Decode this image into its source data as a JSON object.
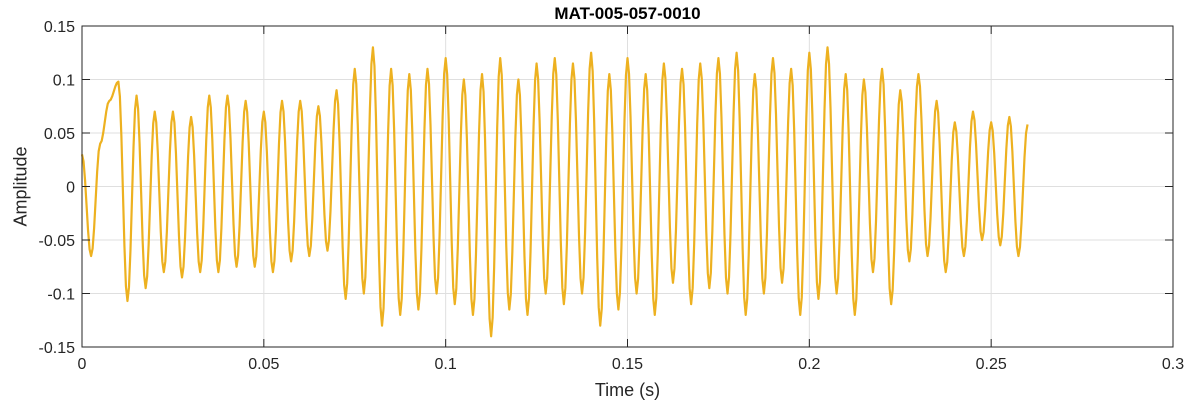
{
  "chart_data": {
    "type": "line",
    "title": "MAT-005-057-0010",
    "xlabel": "Time (s)",
    "ylabel": "Amplitude",
    "xlim": [
      0,
      0.3
    ],
    "ylim": [
      -0.15,
      0.15
    ],
    "x_ticks": [
      0,
      0.05,
      0.1,
      0.15,
      0.2,
      0.25,
      0.3
    ],
    "x_tick_labels": [
      "0",
      "0.05",
      "0.1",
      "0.15",
      "0.2",
      "0.25",
      "0.3"
    ],
    "y_ticks": [
      -0.15,
      -0.1,
      -0.05,
      0,
      0.05,
      0.1,
      0.15
    ],
    "y_tick_labels": [
      "-0.15",
      "-0.1",
      "-0.05",
      "0",
      "0.05",
      "0.1",
      "0.15"
    ],
    "grid": true,
    "legend": "none",
    "series": [
      {
        "color": "#EDB120",
        "x": [
          0.0,
          0.0025,
          0.005,
          0.0075,
          0.01,
          0.0125,
          0.015,
          0.0175,
          0.02,
          0.0225,
          0.025,
          0.0275,
          0.03,
          0.0325,
          0.035,
          0.0375,
          0.04,
          0.0425,
          0.045,
          0.0475,
          0.05,
          0.0525,
          0.055,
          0.0575,
          0.06,
          0.0625,
          0.065,
          0.0675,
          0.07,
          0.0725,
          0.075,
          0.0775,
          0.08,
          0.0825,
          0.085,
          0.0875,
          0.09,
          0.0925,
          0.095,
          0.0975,
          0.1,
          0.1025,
          0.105,
          0.1075,
          0.11,
          0.1125,
          0.115,
          0.1175,
          0.12,
          0.1225,
          0.125,
          0.1275,
          0.13,
          0.1325,
          0.135,
          0.1375,
          0.14,
          0.1425,
          0.145,
          0.1475,
          0.15,
          0.1525,
          0.155,
          0.1575,
          0.16,
          0.1625,
          0.165,
          0.1675,
          0.17,
          0.1725,
          0.175,
          0.1775,
          0.18,
          0.1825,
          0.185,
          0.1875,
          0.19,
          0.1925,
          0.195,
          0.1975,
          0.2,
          0.2025,
          0.205,
          0.2075,
          0.21,
          0.2125,
          0.215,
          0.2175,
          0.22,
          0.2225,
          0.225,
          0.2275,
          0.23,
          0.2325,
          0.235,
          0.2375,
          0.24,
          0.2425,
          0.245,
          0.2475,
          0.25,
          0.2525,
          0.255,
          0.2575,
          0.26
        ],
        "y": [
          0.03,
          -0.065,
          0.04,
          0.08,
          0.098,
          -0.107,
          0.085,
          -0.095,
          0.07,
          -0.08,
          0.07,
          -0.085,
          0.065,
          -0.08,
          0.085,
          -0.08,
          0.085,
          -0.075,
          0.08,
          -0.075,
          0.07,
          -0.08,
          0.08,
          -0.07,
          0.08,
          -0.065,
          0.075,
          -0.06,
          0.09,
          -0.105,
          0.11,
          -0.1,
          0.13,
          -0.13,
          0.11,
          -0.12,
          0.105,
          -0.115,
          0.11,
          -0.1,
          0.12,
          -0.11,
          0.1,
          -0.12,
          0.105,
          -0.14,
          0.12,
          -0.115,
          0.1,
          -0.12,
          0.115,
          -0.1,
          0.12,
          -0.11,
          0.115,
          -0.1,
          0.125,
          -0.13,
          0.105,
          -0.115,
          0.12,
          -0.1,
          0.105,
          -0.12,
          0.115,
          -0.09,
          0.11,
          -0.11,
          0.115,
          -0.095,
          0.12,
          -0.1,
          0.125,
          -0.12,
          0.105,
          -0.1,
          0.12,
          -0.09,
          0.11,
          -0.12,
          0.125,
          -0.105,
          0.13,
          -0.1,
          0.105,
          -0.12,
          0.1,
          -0.08,
          0.11,
          -0.11,
          0.09,
          -0.07,
          0.105,
          -0.065,
          0.08,
          -0.08,
          0.06,
          -0.065,
          0.07,
          -0.05,
          0.06,
          -0.055,
          0.065,
          -0.065,
          0.058
        ]
      }
    ]
  }
}
